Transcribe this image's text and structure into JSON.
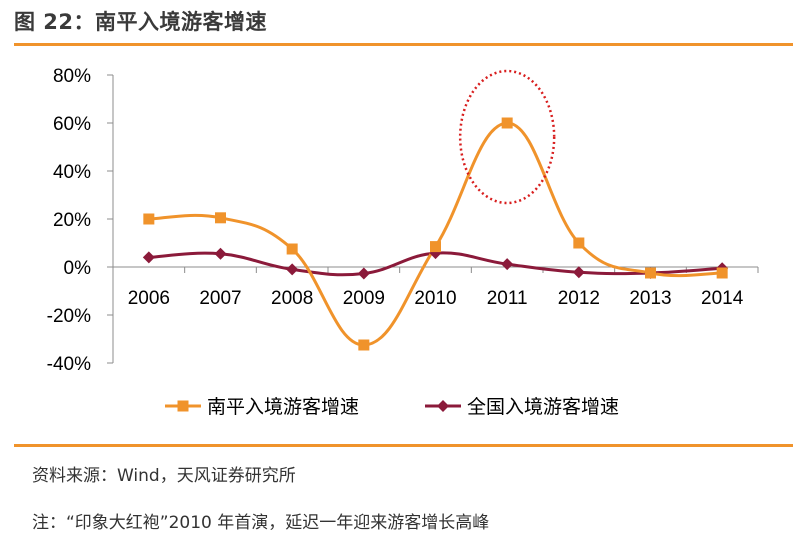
{
  "figure": {
    "title": "图 22：南平入境游客增速",
    "source": "资料来源：Wind，天风证券研究所",
    "note": "注：“印象大红袍”2010 年首演，延迟一年迎来游客增长高峰"
  },
  "colors": {
    "accent_rule": "#f0932b",
    "series1": "#f0932b",
    "series2": "#8b1a3a",
    "highlight_circle": "#d81e1e",
    "axis": "#8c8c8c"
  },
  "chart_data": {
    "type": "line",
    "title": "",
    "xlabel": "",
    "ylabel": "",
    "categories": [
      "2006",
      "2007",
      "2008",
      "2009",
      "2010",
      "2011",
      "2012",
      "2013",
      "2014"
    ],
    "series": [
      {
        "name": "南平入境游客增速",
        "values": [
          20,
          20.5,
          7.5,
          -32.5,
          8.5,
          60,
          10,
          -2.5,
          -2.5
        ],
        "marker": "square"
      },
      {
        "name": "全国入境游客增速",
        "values": [
          4,
          5.5,
          -1,
          -2.7,
          5.8,
          1.2,
          -2.2,
          -2.5,
          -0.5
        ],
        "marker": "diamond"
      }
    ],
    "ylim": [
      -40,
      80
    ],
    "yticks": [
      -40,
      -20,
      0,
      20,
      40,
      60,
      80
    ],
    "ytick_labels": [
      "-40%",
      "-20%",
      "0%",
      "20%",
      "40%",
      "60%",
      "80%"
    ],
    "smooth": true,
    "legend": "bottom-center",
    "annotation": {
      "type": "dotted-ellipse",
      "category": "2011",
      "series": "南平入境游客增速"
    }
  }
}
